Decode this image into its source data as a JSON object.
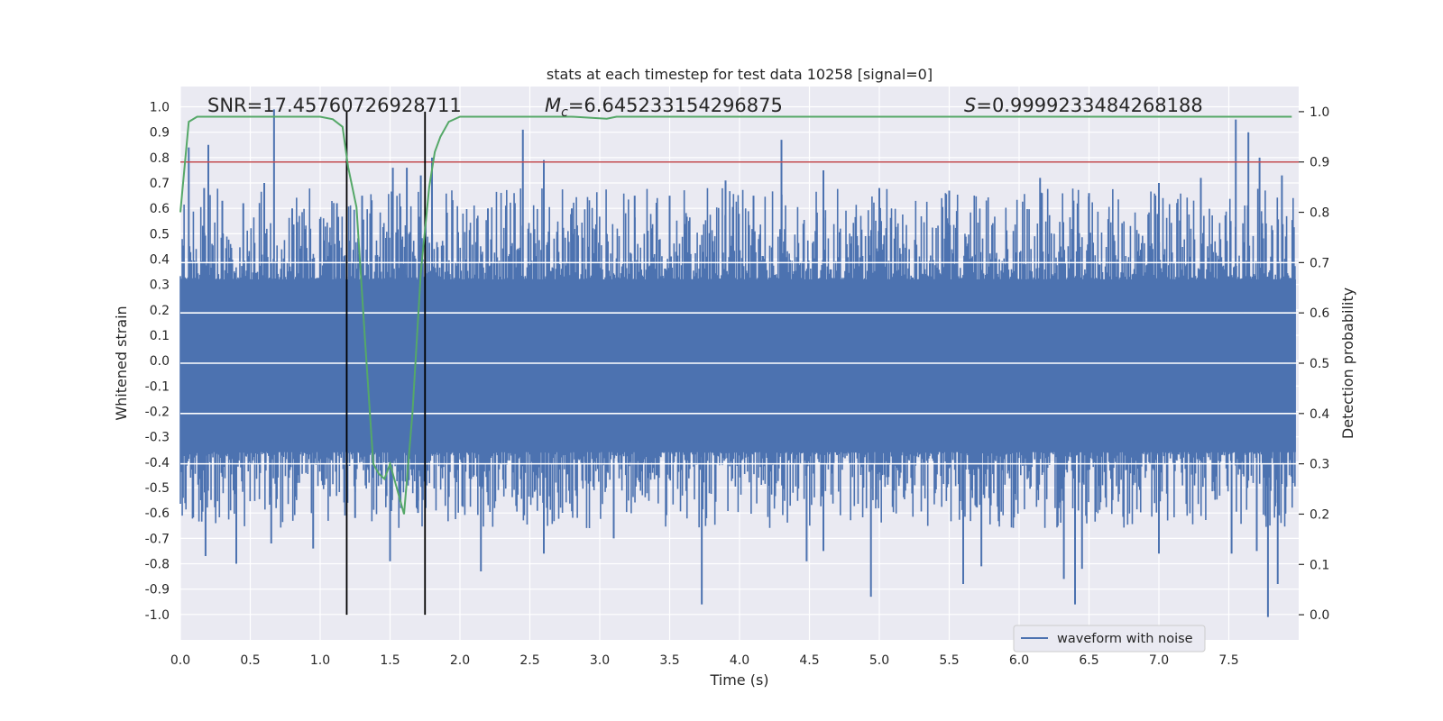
{
  "chart_data": {
    "type": "line",
    "title": "stats at each timestep for test data 10258 [signal=0]",
    "xlabel": "Time (s)",
    "ylabel_left": "Whitened strain",
    "ylabel_right": "Detection probability",
    "xlim": [
      0.0,
      8.0
    ],
    "ylim_left": [
      -1.1,
      1.08
    ],
    "ylim_right": [
      -0.05,
      1.05
    ],
    "x_ticks": [
      "0.0",
      "0.5",
      "1.0",
      "1.5",
      "2.0",
      "2.5",
      "3.0",
      "3.5",
      "4.0",
      "4.5",
      "5.0",
      "5.5",
      "6.0",
      "6.5",
      "7.0",
      "7.5"
    ],
    "y_ticks_left": [
      "1.0",
      "0.9",
      "0.8",
      "0.7",
      "0.6",
      "0.5",
      "0.4",
      "0.3",
      "0.2",
      "0.1",
      "0.0",
      "-0.1",
      "-0.2",
      "-0.3",
      "-0.4",
      "-0.5",
      "-0.6",
      "-0.7",
      "-0.8",
      "-0.9",
      "-1.0"
    ],
    "y_ticks_right": [
      "1.0",
      "0.9",
      "0.8",
      "0.7",
      "0.6",
      "0.5",
      "0.4",
      "0.3",
      "0.2",
      "0.1",
      "0.0"
    ],
    "grid": true,
    "annotations": {
      "snr": "SNR=17.45760726928711",
      "mc_symbol": "M",
      "mc_sub": "c",
      "mc_value": "=6.645233154296875",
      "s_symbol": "S",
      "s_value": "=0.9999233484268188"
    },
    "threshold": {
      "value": 0.9,
      "axis": "right",
      "color": "#c44e52"
    },
    "vertical_markers": [
      1.19,
      1.75
    ],
    "legend": {
      "entries": [
        {
          "label": "waveform with noise",
          "color": "#4c72b0"
        }
      ],
      "position": "lower-right"
    },
    "waveform": {
      "name": "waveform with noise",
      "color": "#4c72b0",
      "core_upper": 0.32,
      "core_lower": -0.36,
      "upper_spikes": [
        [
          0.06,
          0.84
        ],
        [
          0.17,
          0.68
        ],
        [
          0.2,
          0.85
        ],
        [
          0.3,
          0.63
        ],
        [
          0.45,
          0.62
        ],
        [
          0.6,
          0.7
        ],
        [
          0.67,
          0.99
        ],
        [
          0.8,
          0.6
        ],
        [
          1.12,
          0.62
        ],
        [
          1.3,
          0.65
        ],
        [
          1.52,
          0.76
        ],
        [
          1.62,
          0.76
        ],
        [
          1.72,
          0.73
        ],
        [
          1.8,
          0.8
        ],
        [
          2.2,
          0.6
        ],
        [
          2.45,
          0.91
        ],
        [
          2.6,
          0.79
        ],
        [
          2.8,
          0.6
        ],
        [
          3.25,
          0.65
        ],
        [
          3.5,
          0.65
        ],
        [
          3.9,
          0.71
        ],
        [
          4.1,
          0.65
        ],
        [
          4.3,
          0.87
        ],
        [
          4.6,
          0.75
        ],
        [
          5.0,
          0.68
        ],
        [
          5.5,
          0.67
        ],
        [
          6.15,
          0.72
        ],
        [
          6.5,
          0.66
        ],
        [
          7.0,
          0.7
        ],
        [
          7.3,
          0.72
        ],
        [
          7.55,
          0.95
        ],
        [
          7.64,
          0.9
        ],
        [
          7.72,
          0.8
        ],
        [
          7.88,
          0.73
        ]
      ],
      "lower_spikes": [
        [
          0.18,
          -0.77
        ],
        [
          0.4,
          -0.8
        ],
        [
          0.65,
          -0.72
        ],
        [
          0.95,
          -0.74
        ],
        [
          1.25,
          -0.62
        ],
        [
          1.5,
          -0.79
        ],
        [
          1.7,
          -0.6
        ],
        [
          2.15,
          -0.83
        ],
        [
          2.6,
          -0.76
        ],
        [
          3.1,
          -0.7
        ],
        [
          3.73,
          -0.96
        ],
        [
          4.48,
          -0.79
        ],
        [
          4.6,
          -0.75
        ],
        [
          4.94,
          -0.93
        ],
        [
          5.6,
          -0.88
        ],
        [
          5.73,
          -0.81
        ],
        [
          6.32,
          -0.86
        ],
        [
          6.4,
          -0.96
        ],
        [
          6.45,
          -0.82
        ],
        [
          7.0,
          -0.76
        ],
        [
          7.52,
          -0.76
        ],
        [
          7.7,
          -0.75
        ],
        [
          7.78,
          -1.01
        ],
        [
          7.85,
          -0.88
        ]
      ]
    },
    "probability": {
      "name": "detection probability",
      "color": "#55a868",
      "x": [
        0.0,
        0.06,
        0.12,
        0.2,
        0.5,
        0.8,
        1.0,
        1.09,
        1.16,
        1.2,
        1.26,
        1.32,
        1.38,
        1.42,
        1.46,
        1.5,
        1.56,
        1.6,
        1.66,
        1.72,
        1.78,
        1.82,
        1.86,
        1.92,
        2.0,
        2.4,
        2.8,
        3.05,
        3.12,
        3.2,
        3.6,
        4.5,
        5.5,
        6.5,
        7.5,
        7.95
      ],
      "y": [
        0.8,
        0.98,
        0.99,
        0.99,
        0.99,
        0.99,
        0.99,
        0.985,
        0.97,
        0.89,
        0.81,
        0.55,
        0.3,
        0.28,
        0.27,
        0.3,
        0.24,
        0.2,
        0.4,
        0.68,
        0.85,
        0.92,
        0.95,
        0.98,
        0.99,
        0.99,
        0.99,
        0.986,
        0.99,
        0.99,
        0.99,
        0.99,
        0.99,
        0.99,
        0.99,
        0.99
      ]
    }
  }
}
